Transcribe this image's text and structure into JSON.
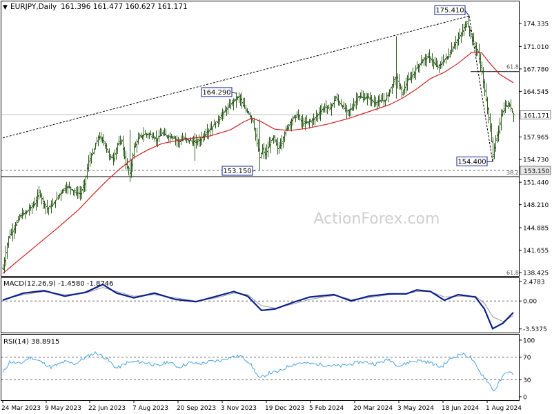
{
  "header": {
    "symbol": "EURJPY,Daily",
    "ohlc": "161.396 161.477 160.627 161.171"
  },
  "watermark": "ActionForex.com",
  "colors": {
    "background": "#ffffff",
    "bars": "#2f5d1f",
    "ma": "#cc1f1f",
    "macd_line": "#0b1e8c",
    "signal_line": "#999999",
    "rsi_line": "#4aa3df",
    "axis": "#000000",
    "grid_dash": "#666666"
  },
  "chart_data": [
    {
      "type": "candlestick",
      "panel": "price",
      "ylim": [
        138.425,
        177.5
      ],
      "y_ticks": [
        "174.335",
        "171.010",
        "167.780",
        "164.545",
        "161.171",
        "157.965",
        "154.730",
        "151.440",
        "148.210",
        "144.885",
        "141.655",
        "138.425"
      ],
      "current_price": "161.171",
      "current_price_value": 161.171,
      "x_labels": [
        "24 Mar 2023",
        "9 May 2023",
        "22 Jun 2023",
        "7 Aug 2023",
        "20 Sep 2023",
        "3 Nov 2023",
        "19 Dec 2023",
        "5 Feb 2024",
        "20 Mar 2024",
        "3 May 2024",
        "18 Jun 2024",
        "1 Aug 2024"
      ],
      "close_path": [
        [
          0,
          139.0
        ],
        [
          8,
          143.6
        ],
        [
          16,
          144.8
        ],
        [
          24,
          146.5
        ],
        [
          32,
          147.0
        ],
        [
          40,
          147.8
        ],
        [
          48,
          148.6
        ],
        [
          52,
          150.2
        ],
        [
          56,
          149.0
        ],
        [
          64,
          147.6
        ],
        [
          72,
          148.2
        ],
        [
          80,
          149.5
        ],
        [
          88,
          150.5
        ],
        [
          96,
          150.8
        ],
        [
          104,
          150.0
        ],
        [
          112,
          149.8
        ],
        [
          118,
          151.2
        ],
        [
          124,
          154.5
        ],
        [
          130,
          155.6
        ],
        [
          138,
          158.0
        ],
        [
          146,
          157.3
        ],
        [
          154,
          155.2
        ],
        [
          160,
          154.9
        ],
        [
          166,
          156.9
        ],
        [
          172,
          157.4
        ],
        [
          178,
          154.0
        ],
        [
          184,
          152.8
        ],
        [
          190,
          156.5
        ],
        [
          198,
          158.0
        ],
        [
          206,
          158.4
        ],
        [
          214,
          158.3
        ],
        [
          222,
          157.6
        ],
        [
          230,
          158.5
        ],
        [
          238,
          158.1
        ],
        [
          246,
          158.0
        ],
        [
          254,
          157.3
        ],
        [
          262,
          157.7
        ],
        [
          270,
          157.5
        ],
        [
          278,
          157.2
        ],
        [
          286,
          157.6
        ],
        [
          294,
          158.6
        ],
        [
          302,
          159.3
        ],
        [
          310,
          160.2
        ],
        [
          318,
          161.3
        ],
        [
          326,
          162.2
        ],
        [
          334,
          163.2
        ],
        [
          342,
          163.8
        ],
        [
          348,
          162.4
        ],
        [
          356,
          161.4
        ],
        [
          362,
          160.3
        ],
        [
          368,
          157.0
        ],
        [
          372,
          155.0
        ],
        [
          376,
          156.2
        ],
        [
          380,
          155.4
        ],
        [
          386,
          156.9
        ],
        [
          392,
          157.9
        ],
        [
          398,
          156.3
        ],
        [
          404,
          157.3
        ],
        [
          410,
          159.0
        ],
        [
          418,
          160.4
        ],
        [
          426,
          161.2
        ],
        [
          434,
          159.9
        ],
        [
          442,
          160.1
        ],
        [
          450,
          160.5
        ],
        [
          458,
          161.5
        ],
        [
          466,
          162.3
        ],
        [
          474,
          162.1
        ],
        [
          482,
          163.6
        ],
        [
          490,
          162.6
        ],
        [
          498,
          161.6
        ],
        [
          506,
          162.2
        ],
        [
          514,
          163.8
        ],
        [
          522,
          163.6
        ],
        [
          530,
          163.6
        ],
        [
          538,
          162.9
        ],
        [
          546,
          163.1
        ],
        [
          554,
          163.3
        ],
        [
          560,
          164.6
        ],
        [
          566,
          166.0
        ],
        [
          570,
          166.6
        ],
        [
          578,
          164.3
        ],
        [
          586,
          166.0
        ],
        [
          594,
          167.0
        ],
        [
          602,
          168.3
        ],
        [
          610,
          169.2
        ],
        [
          618,
          169.5
        ],
        [
          624,
          168.6
        ],
        [
          630,
          168.0
        ],
        [
          638,
          168.9
        ],
        [
          646,
          169.8
        ],
        [
          654,
          171.3
        ],
        [
          660,
          172.2
        ],
        [
          666,
          173.2
        ],
        [
          672,
          174.6
        ],
        [
          676,
          173.3
        ],
        [
          682,
          171.4
        ],
        [
          688,
          170.2
        ],
        [
          694,
          167.3
        ],
        [
          700,
          163.2
        ],
        [
          706,
          159.5
        ],
        [
          710,
          155.2
        ],
        [
          714,
          157.5
        ],
        [
          718,
          158.8
        ],
        [
          722,
          161.2
        ],
        [
          728,
          162.4
        ],
        [
          734,
          162.6
        ],
        [
          740,
          161.171
        ]
      ],
      "ma_path": [
        [
          0,
          138.3
        ],
        [
          40,
          141.6
        ],
        [
          80,
          144.9
        ],
        [
          110,
          147.5
        ],
        [
          130,
          149.6
        ],
        [
          150,
          151.6
        ],
        [
          170,
          153.4
        ],
        [
          190,
          155.0
        ],
        [
          210,
          156.1
        ],
        [
          230,
          157.0
        ],
        [
          260,
          157.6
        ],
        [
          300,
          158.1
        ],
        [
          330,
          159.0
        ],
        [
          350,
          160.2
        ],
        [
          362,
          160.7
        ],
        [
          376,
          160.1
        ],
        [
          394,
          159.1
        ],
        [
          416,
          158.9
        ],
        [
          440,
          159.2
        ],
        [
          470,
          159.8
        ],
        [
          500,
          160.6
        ],
        [
          530,
          161.6
        ],
        [
          560,
          162.6
        ],
        [
          580,
          163.6
        ],
        [
          600,
          164.9
        ],
        [
          620,
          166.4
        ],
        [
          640,
          167.3
        ],
        [
          660,
          168.6
        ],
        [
          680,
          170.2
        ],
        [
          694,
          170.1
        ],
        [
          706,
          168.6
        ],
        [
          720,
          167.0
        ],
        [
          740,
          165.8
        ]
      ],
      "annotations": [
        {
          "text": "175.410",
          "value": 175.41,
          "at_x": 676
        },
        {
          "text": "164.290",
          "value": 164.29,
          "at_x": 338
        },
        {
          "text": "153.150",
          "value": 153.15,
          "at_x": 366
        },
        {
          "text": "154.400",
          "value": 154.4,
          "at_x": 710
        }
      ],
      "lines": {
        "trend_upper": {
          "from": [
            0,
            157.85
          ],
          "to": [
            676,
            175.41
          ]
        },
        "retrace_down": {
          "from": [
            676,
            175.41
          ],
          "to": [
            710,
            154.4
          ]
        },
        "level_153150": {
          "value": 153.15,
          "label": "153.150",
          "style": "dashed"
        },
        "level_382": {
          "value": 152.25,
          "label": "38.2",
          "style": "solid"
        },
        "level_618": {
          "value": 167.4,
          "label": "61.8",
          "from_x": 678
        },
        "level_618_low": {
          "label": "61.8"
        }
      }
    },
    {
      "type": "line",
      "panel": "macd",
      "title": "MACD(12,26,9) -1.4580 -1.8746",
      "y_ticks": [
        "2.4783",
        "0.00",
        "-3.5375"
      ],
      "ylim": [
        -4.0,
        2.9
      ],
      "zero_line": 0.0,
      "series": [
        {
          "name": "MACD",
          "points": [
            [
              0,
              0.1
            ],
            [
              30,
              1.0
            ],
            [
              60,
              1.3
            ],
            [
              90,
              0.6
            ],
            [
              120,
              1.1
            ],
            [
              145,
              2.1
            ],
            [
              165,
              1.0
            ],
            [
              190,
              0.4
            ],
            [
              220,
              1.0
            ],
            [
              250,
              0.2
            ],
            [
              280,
              -0.1
            ],
            [
              310,
              0.6
            ],
            [
              335,
              1.2
            ],
            [
              355,
              0.6
            ],
            [
              375,
              -1.2
            ],
            [
              395,
              -1.0
            ],
            [
              420,
              -0.2
            ],
            [
              445,
              0.5
            ],
            [
              480,
              0.8
            ],
            [
              505,
              0.0
            ],
            [
              530,
              0.6
            ],
            [
              560,
              0.9
            ],
            [
              585,
              0.9
            ],
            [
              600,
              1.4
            ],
            [
              620,
              1.2
            ],
            [
              640,
              0.1
            ],
            [
              660,
              0.8
            ],
            [
              685,
              0.5
            ],
            [
              698,
              -1.0
            ],
            [
              710,
              -3.5
            ],
            [
              725,
              -2.8
            ],
            [
              740,
              -1.46
            ]
          ]
        },
        {
          "name": "Signal",
          "points": [
            [
              0,
              0.2
            ],
            [
              30,
              0.8
            ],
            [
              60,
              1.2
            ],
            [
              90,
              0.8
            ],
            [
              120,
              1.0
            ],
            [
              145,
              1.7
            ],
            [
              165,
              1.2
            ],
            [
              190,
              0.6
            ],
            [
              220,
              0.8
            ],
            [
              250,
              0.4
            ],
            [
              280,
              0.0
            ],
            [
              310,
              0.4
            ],
            [
              335,
              1.0
            ],
            [
              355,
              0.8
            ],
            [
              375,
              -0.6
            ],
            [
              395,
              -0.9
            ],
            [
              420,
              -0.4
            ],
            [
              445,
              0.2
            ],
            [
              480,
              0.7
            ],
            [
              505,
              0.2
            ],
            [
              530,
              0.4
            ],
            [
              560,
              0.8
            ],
            [
              585,
              0.9
            ],
            [
              600,
              1.2
            ],
            [
              620,
              1.2
            ],
            [
              640,
              0.5
            ],
            [
              660,
              0.6
            ],
            [
              685,
              0.6
            ],
            [
              698,
              -0.3
            ],
            [
              710,
              -2.0
            ],
            [
              725,
              -2.6
            ],
            [
              740,
              -1.87
            ]
          ]
        }
      ]
    },
    {
      "type": "line",
      "panel": "rsi",
      "title": "RSI(14) 38.8915",
      "y_ticks": [
        "100",
        "70",
        "30",
        "0"
      ],
      "ylim": [
        0,
        100
      ],
      "levels": [
        70,
        30
      ],
      "series": [
        {
          "name": "RSI",
          "points": [
            [
              0,
              42
            ],
            [
              10,
              62
            ],
            [
              25,
              58
            ],
            [
              40,
              70
            ],
            [
              55,
              62
            ],
            [
              70,
              52
            ],
            [
              90,
              62
            ],
            [
              105,
              58
            ],
            [
              120,
              70
            ],
            [
              135,
              78
            ],
            [
              150,
              68
            ],
            [
              165,
              50
            ],
            [
              180,
              60
            ],
            [
              195,
              62
            ],
            [
              210,
              60
            ],
            [
              225,
              54
            ],
            [
              240,
              62
            ],
            [
              255,
              52
            ],
            [
              270,
              60
            ],
            [
              285,
              58
            ],
            [
              300,
              62
            ],
            [
              315,
              64
            ],
            [
              330,
              70
            ],
            [
              345,
              72
            ],
            [
              358,
              60
            ],
            [
              372,
              32
            ],
            [
              386,
              42
            ],
            [
              400,
              44
            ],
            [
              415,
              55
            ],
            [
              430,
              60
            ],
            [
              450,
              58
            ],
            [
              470,
              56
            ],
            [
              490,
              54
            ],
            [
              505,
              58
            ],
            [
              520,
              62
            ],
            [
              540,
              58
            ],
            [
              560,
              66
            ],
            [
              575,
              54
            ],
            [
              590,
              62
            ],
            [
              605,
              64
            ],
            [
              620,
              60
            ],
            [
              635,
              52
            ],
            [
              650,
              68
            ],
            [
              665,
              76
            ],
            [
              678,
              70
            ],
            [
              690,
              46
            ],
            [
              700,
              32
            ],
            [
              712,
              10
            ],
            [
              722,
              30
            ],
            [
              730,
              45
            ],
            [
              740,
              38.89
            ]
          ]
        }
      ]
    }
  ]
}
